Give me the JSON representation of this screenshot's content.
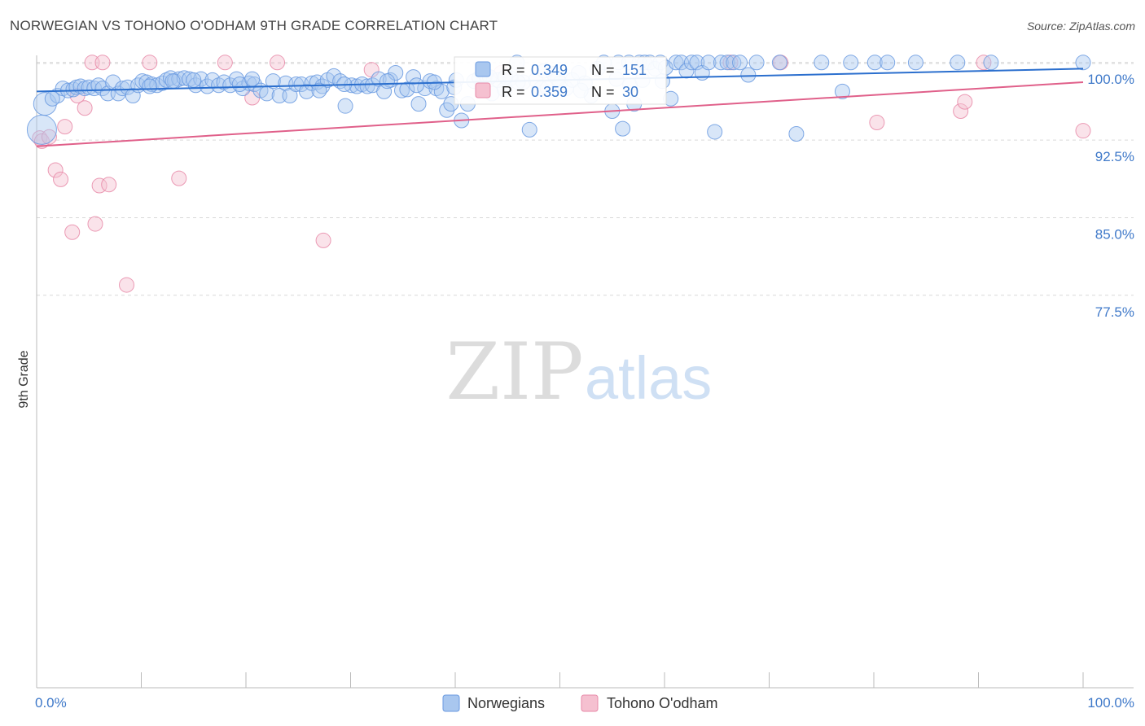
{
  "title": "NORWEGIAN VS TOHONO O'ODHAM 9TH GRADE CORRELATION CHART",
  "source": "Source: ZipAtlas.com",
  "watermark": {
    "zip": "ZIP",
    "atlas": "atlas"
  },
  "colors": {
    "norwegians": "#6a9ae0",
    "norwegians_fill": "#a9c7ef",
    "norwegians_line": "#2b6fce",
    "tohono": "#e88aa8",
    "tohono_fill": "#f5c0d0",
    "tohono_line": "#e0608a",
    "axis_label": "#3f79c9"
  },
  "legend_box": {
    "rows": [
      {
        "r_label": "R = ",
        "r_value": "0.349",
        "n_label": "N = ",
        "n_value": "151"
      },
      {
        "r_label": "R = ",
        "r_value": "0.359",
        "n_label": "N = ",
        "n_value": "30"
      }
    ]
  },
  "chart_data": {
    "type": "scatter",
    "title": "NORWEGIAN VS TOHONO O'ODHAM 9TH GRADE CORRELATION CHART",
    "xlabel": "",
    "ylabel": "9th Grade",
    "xlim": [
      0,
      100
    ],
    "ylim": [
      70.0,
      101.0
    ],
    "x_tick_labels": [
      "0.0%",
      "100.0%"
    ],
    "y_ticks": [
      77.5,
      85.0,
      92.5,
      100.0
    ],
    "y_tick_labels": [
      "77.5%",
      "85.0%",
      "92.5%",
      "100.0%"
    ],
    "grid": true,
    "legend_position": "bottom-center",
    "series": [
      {
        "name": "Norwegians",
        "r": 0.349,
        "n": 151,
        "trend": [
          [
            0,
            97.2
          ],
          [
            100,
            99.4
          ]
        ],
        "points": [
          [
            0.8,
            96.0
          ],
          [
            0.5,
            93.5
          ],
          [
            2.0,
            96.8
          ],
          [
            1.5,
            96.5
          ],
          [
            2.5,
            97.5
          ],
          [
            3.0,
            97.3
          ],
          [
            3.5,
            97.4
          ],
          [
            3.8,
            97.6
          ],
          [
            4.2,
            97.7
          ],
          [
            4.6,
            97.5
          ],
          [
            5.0,
            97.6
          ],
          [
            5.5,
            97.5
          ],
          [
            5.9,
            97.8
          ],
          [
            6.3,
            97.5
          ],
          [
            6.8,
            97.0
          ],
          [
            7.3,
            98.1
          ],
          [
            7.8,
            97.0
          ],
          [
            8.2,
            97.5
          ],
          [
            8.7,
            97.6
          ],
          [
            9.2,
            96.8
          ],
          [
            9.7,
            97.8
          ],
          [
            10.1,
            98.2
          ],
          [
            10.5,
            98.1
          ],
          [
            11.0,
            97.9
          ],
          [
            11.5,
            97.8
          ],
          [
            12.0,
            98.0
          ],
          [
            12.4,
            98.3
          ],
          [
            12.8,
            98.5
          ],
          [
            13.2,
            98.2
          ],
          [
            13.6,
            98.4
          ],
          [
            14.1,
            98.5
          ],
          [
            14.6,
            98.4
          ],
          [
            15.2,
            97.8
          ],
          [
            15.7,
            98.4
          ],
          [
            16.3,
            97.7
          ],
          [
            16.8,
            98.3
          ],
          [
            17.4,
            97.8
          ],
          [
            17.9,
            98.1
          ],
          [
            18.5,
            97.8
          ],
          [
            19.1,
            98.4
          ],
          [
            19.7,
            97.5
          ],
          [
            20.3,
            98.0
          ],
          [
            20.8,
            97.9
          ],
          [
            21.4,
            97.3
          ],
          [
            22.0,
            97.0
          ],
          [
            22.6,
            98.2
          ],
          [
            23.2,
            96.8
          ],
          [
            23.8,
            98.0
          ],
          [
            24.2,
            96.8
          ],
          [
            24.8,
            97.9
          ],
          [
            25.3,
            97.9
          ],
          [
            25.8,
            97.2
          ],
          [
            26.3,
            98.0
          ],
          [
            26.8,
            98.1
          ],
          [
            27.3,
            97.7
          ],
          [
            27.8,
            98.3
          ],
          [
            28.4,
            98.7
          ],
          [
            29.0,
            98.2
          ],
          [
            29.5,
            95.8
          ],
          [
            30.1,
            97.8
          ],
          [
            30.6,
            97.7
          ],
          [
            31.1,
            97.9
          ],
          [
            31.6,
            97.7
          ],
          [
            32.1,
            97.8
          ],
          [
            32.7,
            98.4
          ],
          [
            33.2,
            97.2
          ],
          [
            33.8,
            98.3
          ],
          [
            34.3,
            99.0
          ],
          [
            34.9,
            97.3
          ],
          [
            35.4,
            97.4
          ],
          [
            36.0,
            98.6
          ],
          [
            36.5,
            96.0
          ],
          [
            37.1,
            97.5
          ],
          [
            37.6,
            98.2
          ],
          [
            38.2,
            97.5
          ],
          [
            38.7,
            97.2
          ],
          [
            39.2,
            95.4
          ],
          [
            39.6,
            96.0
          ],
          [
            40.1,
            98.3
          ],
          [
            40.6,
            94.4
          ],
          [
            41.2,
            96.0
          ],
          [
            41.8,
            98.2
          ],
          [
            42.3,
            98.5
          ],
          [
            42.9,
            98.8
          ],
          [
            43.5,
            97.0
          ],
          [
            44.1,
            98.3
          ],
          [
            44.7,
            97.4
          ],
          [
            45.3,
            98.5
          ],
          [
            45.9,
            100.0
          ],
          [
            46.5,
            98.1
          ],
          [
            47.1,
            93.5
          ],
          [
            47.7,
            98.3
          ],
          [
            48.2,
            97.5
          ],
          [
            48.8,
            97.5
          ],
          [
            49.4,
            98.9
          ],
          [
            50.0,
            98.0
          ],
          [
            50.6,
            97.5
          ],
          [
            51.2,
            98.3
          ],
          [
            51.8,
            99.0
          ],
          [
            52.4,
            98.0
          ],
          [
            53.0,
            96.8
          ],
          [
            53.6,
            99.4
          ],
          [
            54.2,
            100.0
          ],
          [
            55.0,
            95.3
          ],
          [
            55.6,
            100.0
          ],
          [
            56.0,
            93.6
          ],
          [
            56.6,
            100.0
          ],
          [
            57.1,
            96.0
          ],
          [
            57.6,
            100.0
          ],
          [
            58.1,
            100.0
          ],
          [
            58.6,
            100.0
          ],
          [
            59.1,
            99.4
          ],
          [
            59.6,
            100.0
          ],
          [
            60.1,
            99.5
          ],
          [
            60.6,
            96.5
          ],
          [
            61.1,
            100.0
          ],
          [
            61.6,
            100.0
          ],
          [
            62.1,
            99.2
          ],
          [
            62.6,
            100.0
          ],
          [
            63.1,
            100.0
          ],
          [
            63.6,
            99.0
          ],
          [
            64.2,
            100.0
          ],
          [
            64.8,
            93.3
          ],
          [
            65.4,
            100.0
          ],
          [
            66.0,
            100.0
          ],
          [
            66.6,
            100.0
          ],
          [
            67.2,
            100.0
          ],
          [
            68.0,
            98.8
          ],
          [
            68.8,
            100.0
          ],
          [
            71.0,
            100.0
          ],
          [
            72.6,
            93.1
          ],
          [
            75.0,
            100.0
          ],
          [
            77.0,
            97.2
          ],
          [
            77.8,
            100.0
          ],
          [
            80.1,
            100.0
          ],
          [
            81.3,
            100.0
          ],
          [
            84.0,
            100.0
          ],
          [
            88.0,
            100.0
          ],
          [
            91.2,
            100.0
          ],
          [
            100.0,
            100.0
          ],
          [
            33.5,
            98.2
          ],
          [
            19.4,
            97.9
          ],
          [
            15.0,
            98.3
          ],
          [
            44.8,
            98.6
          ],
          [
            55.4,
            98.4
          ],
          [
            13.0,
            98.2
          ],
          [
            20.6,
            98.4
          ],
          [
            29.4,
            97.9
          ],
          [
            38.0,
            98.1
          ],
          [
            46.0,
            98.1
          ],
          [
            52.0,
            97.3
          ],
          [
            56.7,
            97.8
          ],
          [
            10.8,
            97.7
          ],
          [
            27.0,
            97.3
          ],
          [
            36.3,
            97.8
          ],
          [
            43.3,
            98.6
          ],
          [
            49.8,
            98.4
          ],
          [
            57.9,
            98.3
          ],
          [
            59.8,
            98.2
          ],
          [
            39.9,
            97.6
          ],
          [
            48.5,
            99.2
          ]
        ]
      },
      {
        "name": "Tohono O'odham",
        "r": 0.359,
        "n": 30,
        "trend": [
          [
            0,
            91.9
          ],
          [
            100,
            98.1
          ]
        ],
        "points": [
          [
            0.3,
            92.7
          ],
          [
            0.5,
            92.4
          ],
          [
            1.2,
            92.8
          ],
          [
            1.8,
            89.6
          ],
          [
            2.3,
            88.7
          ],
          [
            2.7,
            93.8
          ],
          [
            3.4,
            83.6
          ],
          [
            3.9,
            96.8
          ],
          [
            4.6,
            95.6
          ],
          [
            5.3,
            100.0
          ],
          [
            5.6,
            84.4
          ],
          [
            6.0,
            88.1
          ],
          [
            6.3,
            100.0
          ],
          [
            6.9,
            88.2
          ],
          [
            8.6,
            78.5
          ],
          [
            10.8,
            100.0
          ],
          [
            13.6,
            88.8
          ],
          [
            18.0,
            100.0
          ],
          [
            20.6,
            96.6
          ],
          [
            23.0,
            100.0
          ],
          [
            27.4,
            82.8
          ],
          [
            32.0,
            99.3
          ],
          [
            44.4,
            99.0
          ],
          [
            66.3,
            100.0
          ],
          [
            71.1,
            100.0
          ],
          [
            80.3,
            94.2
          ],
          [
            88.3,
            95.3
          ],
          [
            88.7,
            96.2
          ],
          [
            90.5,
            100.0
          ],
          [
            100.0,
            93.4
          ]
        ]
      }
    ]
  },
  "legend": {
    "items": [
      {
        "label": "Norwegians"
      },
      {
        "label": "Tohono O'odham"
      }
    ]
  }
}
